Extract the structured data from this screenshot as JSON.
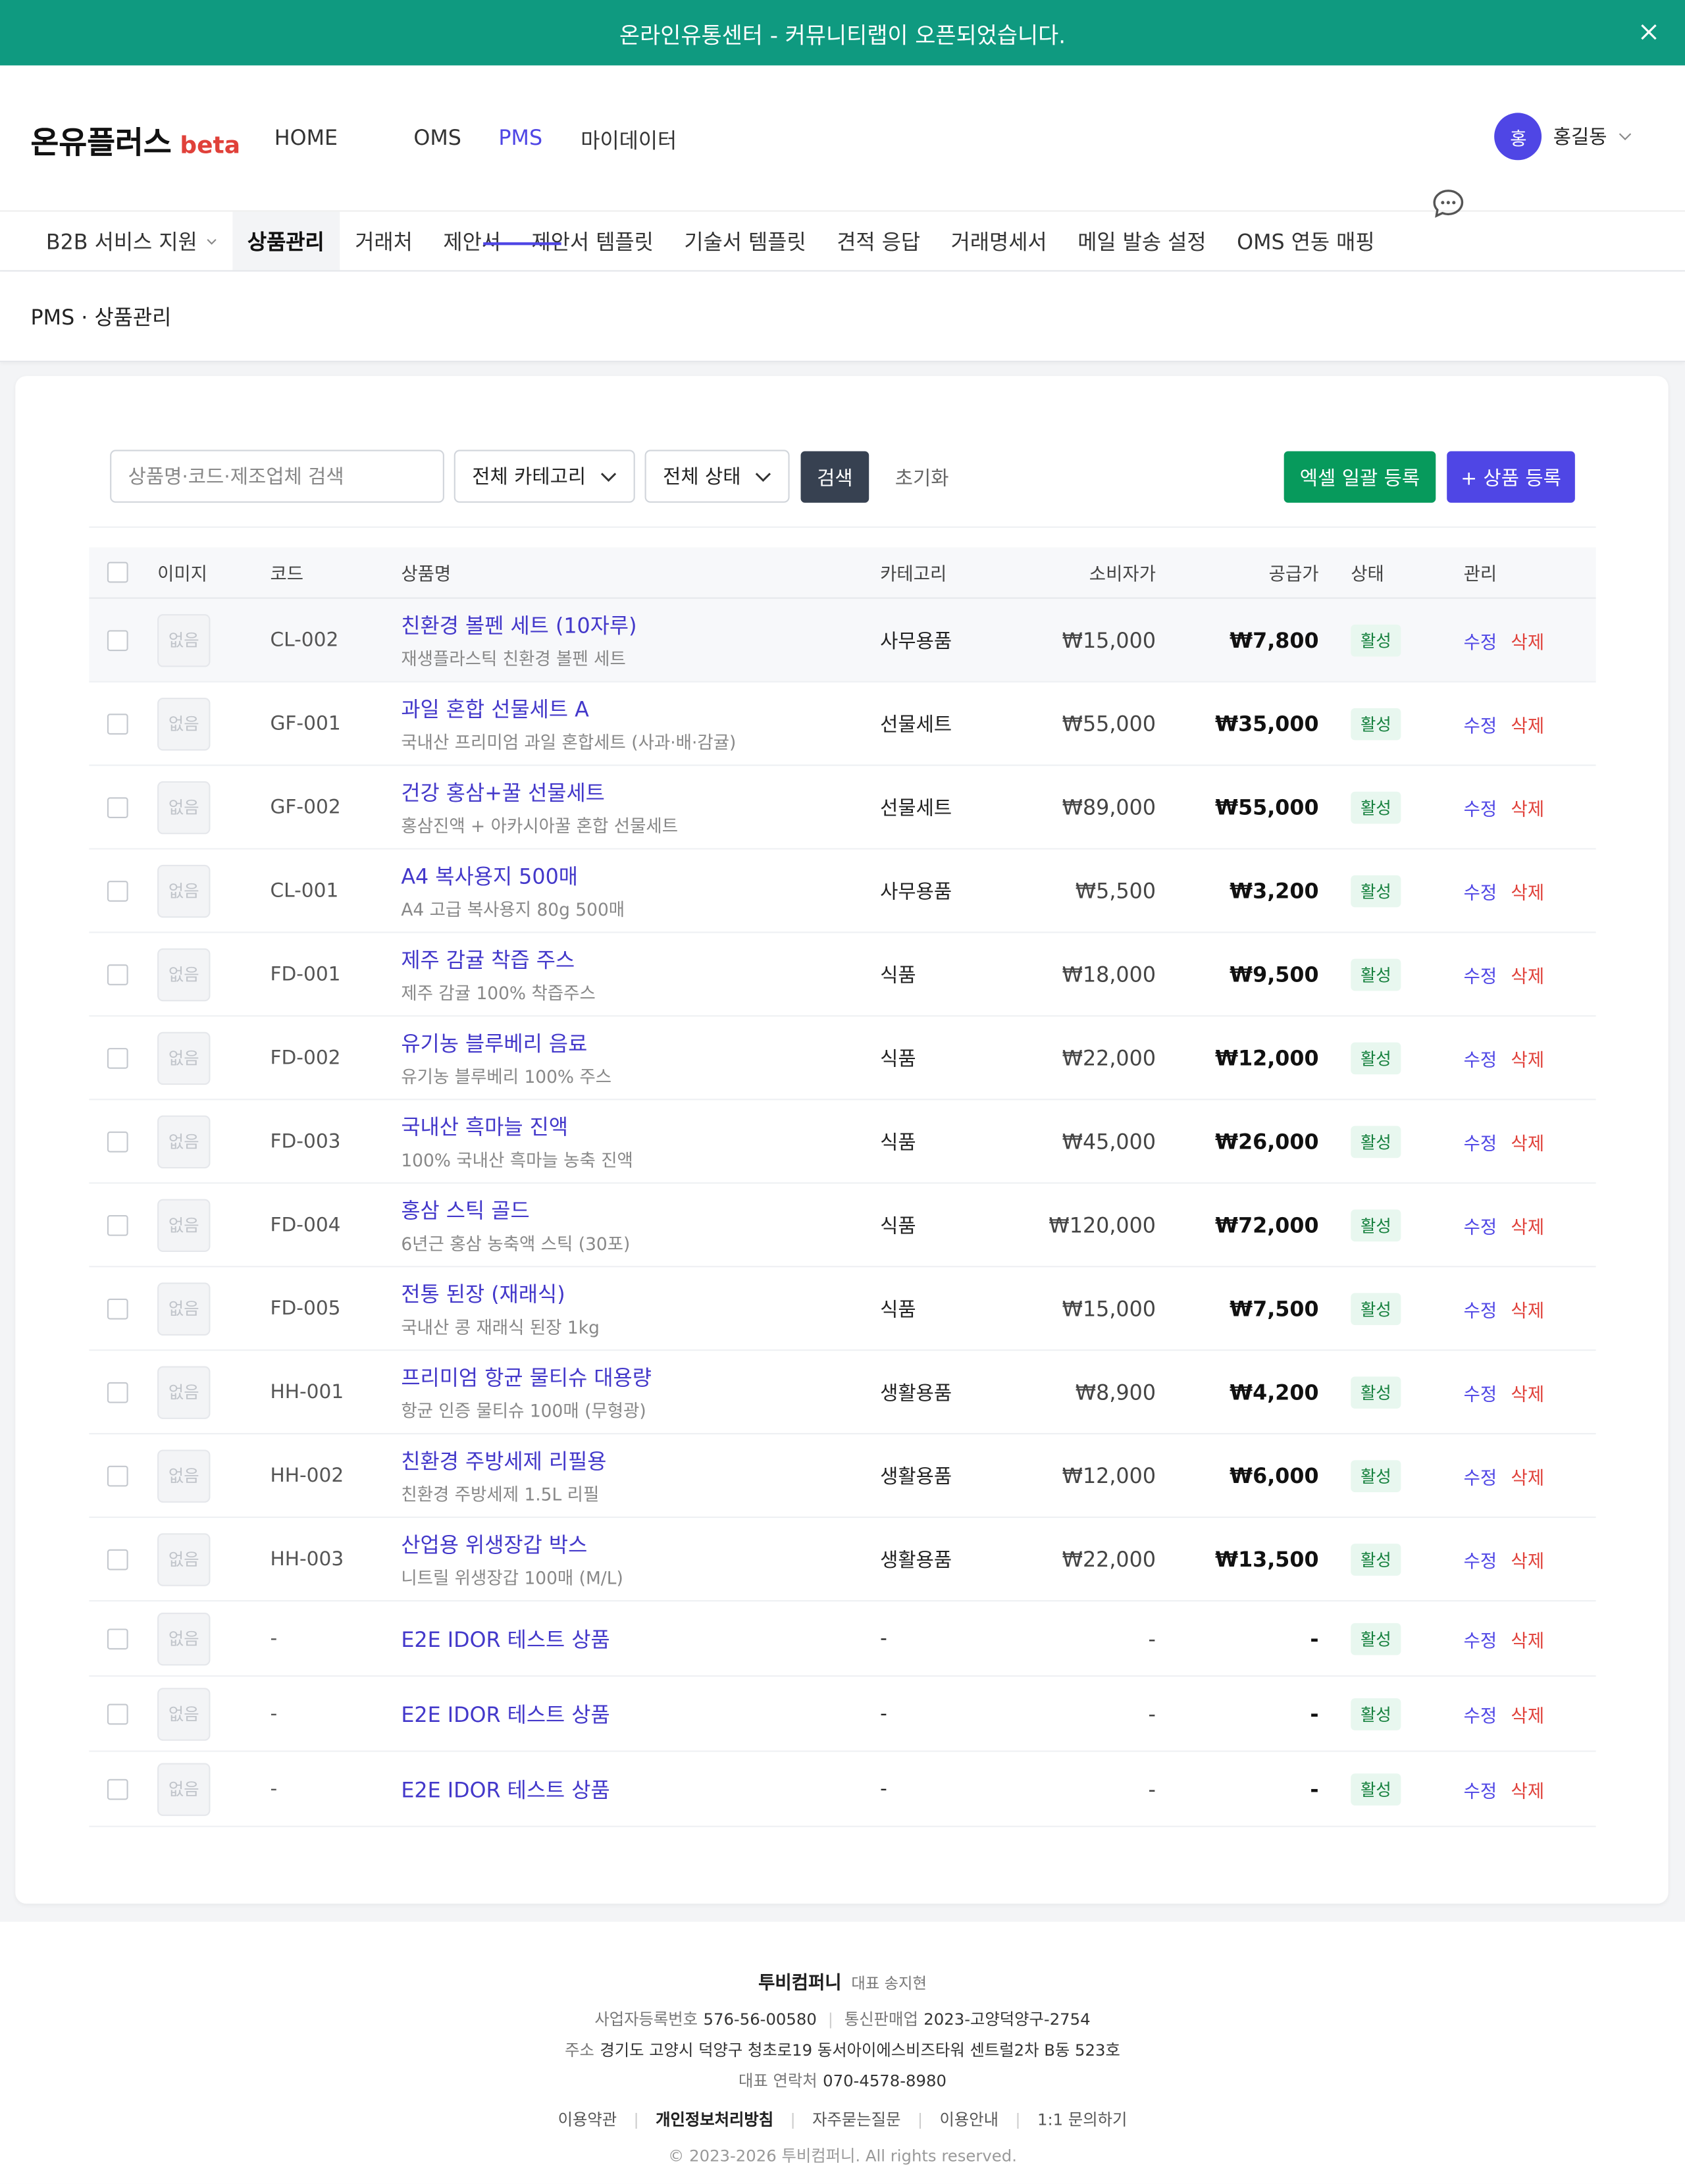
{
  "banner": {
    "text": "온라인유통센터 - 커뮤니티랩이 오픈되었습니다."
  },
  "header": {
    "logo": "온유플러스",
    "beta": "beta",
    "nav": [
      "HOME",
      "OMS",
      "PMS",
      "마이데이터"
    ],
    "avatar": "홍",
    "user": "홍길동"
  },
  "subnav": [
    "B2B 서비스 지원",
    "상품관리",
    "거래처",
    "제안서",
    "제안서 템플릿",
    "기술서 템플릿",
    "견적 응답",
    "거래명세서",
    "메일 발송 설정",
    "OMS 연동 매핑"
  ],
  "breadcrumb": "PMS · 상품관리",
  "filters": {
    "search_placeholder": "상품명·코드·제조업체 검색",
    "category": "전체 카테고리",
    "status": "전체 상태",
    "search": "검색",
    "reset": "초기화",
    "excel": "엑셀 일괄 등록",
    "add": "+ 상품 등록"
  },
  "table": {
    "columns": [
      "이미지",
      "코드",
      "상품명",
      "카테고리",
      "소비자가",
      "공급가",
      "상태",
      "관리"
    ],
    "rows": [
      {
        "image": "없음",
        "code": "CL-002",
        "name": "친환경 볼펜 세트 (10자루)",
        "desc": "재생플라스틱 친환경 볼펜 세트",
        "category": "사무용품",
        "price": "₩15,000",
        "supply": "₩7,800",
        "status": "활성",
        "edit": "수정",
        "delete": "삭제"
      },
      {
        "image": "없음",
        "code": "GF-001",
        "name": "과일 혼합 선물세트 A",
        "desc": "국내산 프리미엄 과일 혼합세트 (사과·배·감귤)",
        "category": "선물세트",
        "price": "₩55,000",
        "supply": "₩35,000",
        "status": "활성",
        "edit": "수정",
        "delete": "삭제"
      },
      {
        "image": "없음",
        "code": "GF-002",
        "name": "건강 홍삼+꿀 선물세트",
        "desc": "홍삼진액 + 아카시아꿀 혼합 선물세트",
        "category": "선물세트",
        "price": "₩89,000",
        "supply": "₩55,000",
        "status": "활성",
        "edit": "수정",
        "delete": "삭제"
      },
      {
        "image": "없음",
        "code": "CL-001",
        "name": "A4 복사용지 500매",
        "desc": "A4 고급 복사용지 80g 500매",
        "category": "사무용품",
        "price": "₩5,500",
        "supply": "₩3,200",
        "status": "활성",
        "edit": "수정",
        "delete": "삭제"
      },
      {
        "image": "없음",
        "code": "FD-001",
        "name": "제주 감귤 착즙 주스",
        "desc": "제주 감귤 100% 착즙주스",
        "category": "식품",
        "price": "₩18,000",
        "supply": "₩9,500",
        "status": "활성",
        "edit": "수정",
        "delete": "삭제"
      },
      {
        "image": "없음",
        "code": "FD-002",
        "name": "유기농 블루베리 음료",
        "desc": "유기농 블루베리 100% 주스",
        "category": "식품",
        "price": "₩22,000",
        "supply": "₩12,000",
        "status": "활성",
        "edit": "수정",
        "delete": "삭제"
      },
      {
        "image": "없음",
        "code": "FD-003",
        "name": "국내산 흑마늘 진액",
        "desc": "100% 국내산 흑마늘 농축 진액",
        "category": "식품",
        "price": "₩45,000",
        "supply": "₩26,000",
        "status": "활성",
        "edit": "수정",
        "delete": "삭제"
      },
      {
        "image": "없음",
        "code": "FD-004",
        "name": "홍삼 스틱 골드",
        "desc": "6년근 홍삼 농축액 스틱 (30포)",
        "category": "식품",
        "price": "₩120,000",
        "supply": "₩72,000",
        "status": "활성",
        "edit": "수정",
        "delete": "삭제"
      },
      {
        "image": "없음",
        "code": "FD-005",
        "name": "전통 된장 (재래식)",
        "desc": "국내산 콩 재래식 된장 1kg",
        "category": "식품",
        "price": "₩15,000",
        "supply": "₩7,500",
        "status": "활성",
        "edit": "수정",
        "delete": "삭제"
      },
      {
        "image": "없음",
        "code": "HH-001",
        "name": "프리미엄 항균 물티슈 대용량",
        "desc": "항균 인증 물티슈 100매 (무형광)",
        "category": "생활용품",
        "price": "₩8,900",
        "supply": "₩4,200",
        "status": "활성",
        "edit": "수정",
        "delete": "삭제"
      },
      {
        "image": "없음",
        "code": "HH-002",
        "name": "친환경 주방세제 리필용",
        "desc": "친환경 주방세제 1.5L 리필",
        "category": "생활용품",
        "price": "₩12,000",
        "supply": "₩6,000",
        "status": "활성",
        "edit": "수정",
        "delete": "삭제"
      },
      {
        "image": "없음",
        "code": "HH-003",
        "name": "산업용 위생장갑 박스",
        "desc": "니트릴 위생장갑 100매 (M/L)",
        "category": "생활용품",
        "price": "₩22,000",
        "supply": "₩13,500",
        "status": "활성",
        "edit": "수정",
        "delete": "삭제"
      },
      {
        "image": "없음",
        "code": "-",
        "name": "E2E IDOR 테스트 상품",
        "category": "-",
        "price": "-",
        "supply": "-",
        "status": "활성",
        "edit": "수정",
        "delete": "삭제"
      },
      {
        "image": "없음",
        "code": "-",
        "name": "E2E IDOR 테스트 상품",
        "category": "-",
        "price": "-",
        "supply": "-",
        "status": "활성",
        "edit": "수정",
        "delete": "삭제"
      },
      {
        "image": "없음",
        "code": "-",
        "name": "E2E IDOR 테스트 상품",
        "category": "-",
        "price": "-",
        "supply": "-",
        "status": "활성",
        "edit": "수정",
        "delete": "삭제"
      }
    ]
  },
  "footer": {
    "company": "투비컴퍼니",
    "ceo": "대표 송지현",
    "lines": [
      [
        {
          "label": "사업자등록번호",
          "value": "576-56-00580"
        },
        {
          "label": "통신판매업",
          "value": "2023-고양덕양구-2754"
        }
      ],
      [
        {
          "label": "주소",
          "value": "경기도 고양시 덕양구 청초로19 동서아이에스비즈타워 센트럴2차 B동 523호"
        }
      ],
      [
        {
          "label": "대표 연락처",
          "value": "070-4578-8980"
        }
      ]
    ],
    "links": [
      "이용약관",
      "개인정보처리방침",
      "자주묻는질문",
      "이용안내",
      "1:1 문의하기"
    ],
    "copyright": "© 2023-2026 투비컴퍼니. All rights reserved."
  }
}
